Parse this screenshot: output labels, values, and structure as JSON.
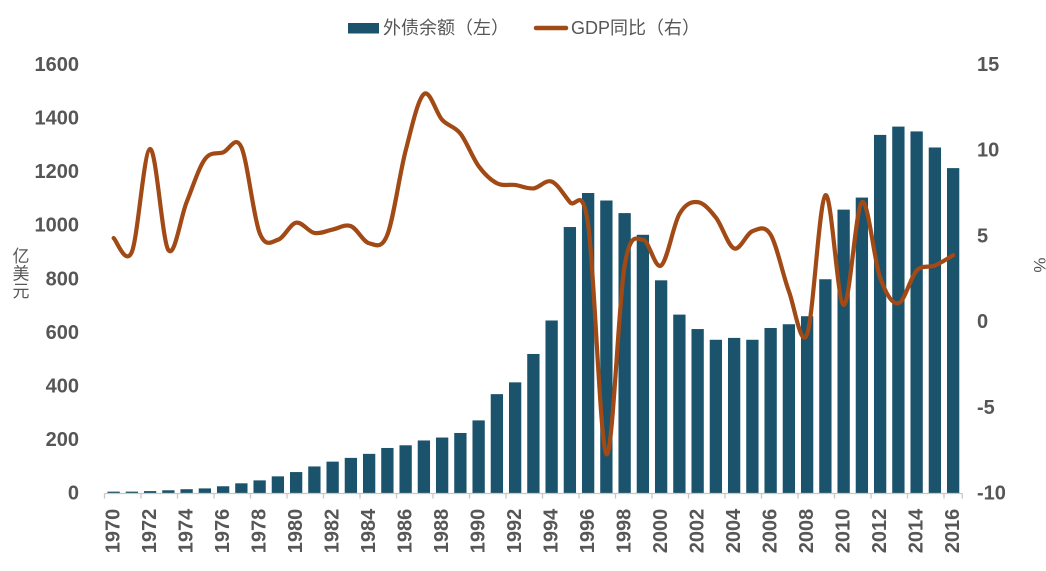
{
  "chart_data": {
    "type": "bar+line",
    "categories": [
      1970,
      1971,
      1972,
      1973,
      1974,
      1975,
      1976,
      1977,
      1978,
      1979,
      1980,
      1981,
      1982,
      1983,
      1984,
      1985,
      1986,
      1987,
      1988,
      1989,
      1990,
      1991,
      1992,
      1993,
      1994,
      1995,
      1996,
      1997,
      1998,
      1999,
      2000,
      2001,
      2002,
      2003,
      2004,
      2005,
      2006,
      2007,
      2008,
      2009,
      2010,
      2011,
      2012,
      2013,
      2014,
      2015,
      2016
    ],
    "series": [
      {
        "name": "外债余额（左）",
        "type": "bar",
        "axis": "left",
        "values": [
          7,
          7,
          9,
          12,
          16,
          19,
          27,
          38,
          49,
          64,
          80,
          101,
          119,
          133,
          148,
          170,
          180,
          198,
          209,
          226,
          273,
          371,
          415,
          521,
          646,
          995,
          1122,
          1094,
          1047,
          966,
          796,
          668,
          614,
          574,
          581,
          574,
          618,
          632,
          662,
          800,
          1060,
          1105,
          1339,
          1370,
          1352,
          1292,
          1215
        ],
        "color": "#1a536b"
      },
      {
        "name": "GDP同比（右）",
        "type": "line",
        "axis": "right",
        "values": [
          4.9,
          4.1,
          10.1,
          4.2,
          7.0,
          9.5,
          9.9,
          10.2,
          5.2,
          4.8,
          5.8,
          5.2,
          5.4,
          5.6,
          4.6,
          5.1,
          10.0,
          13.3,
          11.8,
          11.0,
          9.1,
          8.1,
          8.0,
          7.8,
          8.2,
          7.0,
          5.7,
          -7.7,
          3.3,
          4.8,
          3.3,
          6.3,
          7.0,
          6.1,
          4.3,
          5.3,
          5.1,
          1.8,
          -0.7,
          7.4,
          1.0,
          7.0,
          2.6,
          1.1,
          3.0,
          3.3,
          3.9
        ],
        "color": "#a24a16"
      }
    ],
    "left_axis": {
      "title": "亿美元",
      "min": 0,
      "max": 1600,
      "step": 200
    },
    "right_axis": {
      "title": "%",
      "min": -10,
      "max": 15,
      "step": 5
    },
    "x_axis": {
      "label_every": 2,
      "label_rotation": -90
    },
    "legend_position": "top",
    "grid": false,
    "text_color": "#565656",
    "axis_line_color": "#c8c8c8"
  }
}
